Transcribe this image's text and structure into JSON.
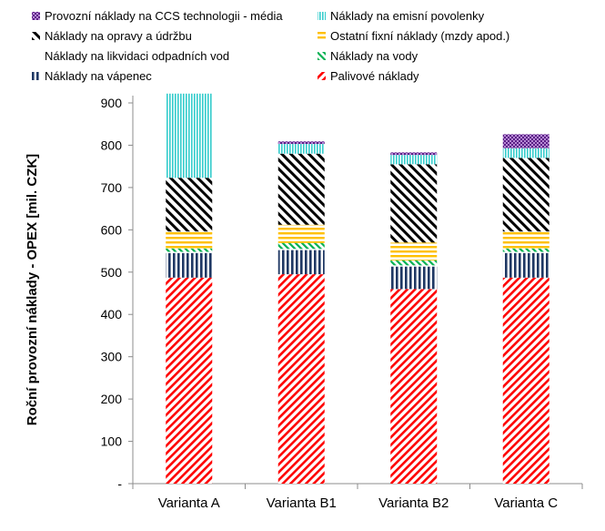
{
  "chart_data": {
    "type": "bar",
    "stacked": true,
    "title": "",
    "xlabel": "",
    "ylabel": "Roční provozní náklady - OPEX [mil. CZK]",
    "ylim": [
      0,
      900
    ],
    "yticks": [
      0,
      100,
      200,
      300,
      400,
      500,
      600,
      700,
      800,
      900
    ],
    "yticklabels": [
      "-",
      "100",
      "200",
      "300",
      "400",
      "500",
      "600",
      "700",
      "800",
      "900"
    ],
    "categories": [
      "Varianta A",
      "Varianta B1",
      "Varianta B2",
      "Varianta C"
    ],
    "legend_position": "top",
    "series": [
      {
        "name": "Palivové náklady",
        "pattern": "diag-red",
        "color": "#ff0000",
        "values": [
          487,
          495,
          460,
          487
        ]
      },
      {
        "name": "Náklady na vápenec",
        "pattern": "vert-navy",
        "color": "#1f3864",
        "values": [
          58,
          57,
          53,
          58
        ]
      },
      {
        "name": "Náklady na likvidaci odpadních vod",
        "pattern": "solid-blue",
        "color": "#8eaadb",
        "values": [
          3,
          3,
          3,
          3
        ]
      },
      {
        "name": "Náklady na vody",
        "pattern": "diag-green",
        "color": "#00b050",
        "values": [
          8,
          14,
          12,
          8
        ]
      },
      {
        "name": "Ostatní fixní náklady (mzdy apod.)",
        "pattern": "horiz-yellow",
        "color": "#ffc000",
        "values": [
          40,
          43,
          42,
          40
        ]
      },
      {
        "name": "Náklady na opravy a údržbu",
        "pattern": "diag-black",
        "color": "#000000",
        "values": [
          127,
          168,
          185,
          174
        ]
      },
      {
        "name": "Náklady na emisní povolenky",
        "pattern": "vert-cyan",
        "color": "#33cccc",
        "values": [
          199,
          23,
          22,
          23
        ]
      },
      {
        "name": "Provozní náklady na CCS technologii - média",
        "pattern": "check-purple",
        "color": "#7030a0",
        "values": [
          0,
          6,
          6,
          33
        ]
      }
    ],
    "legend_order": [
      7,
      6,
      5,
      4,
      2,
      3,
      1,
      0
    ]
  }
}
